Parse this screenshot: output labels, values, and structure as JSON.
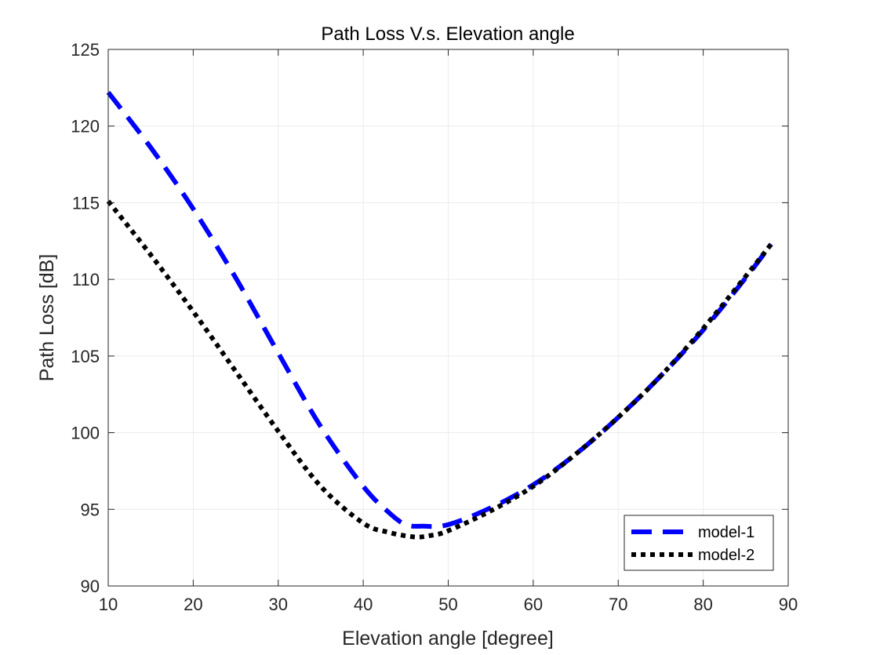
{
  "chart_data": {
    "type": "line",
    "title": "Path Loss V.s. Elevation angle",
    "xlabel": "Elevation angle [degree]",
    "ylabel": "Path Loss [dB]",
    "xlim": [
      10,
      90
    ],
    "ylim": [
      90,
      125
    ],
    "xticks": [
      10,
      20,
      30,
      40,
      50,
      60,
      70,
      80,
      90
    ],
    "yticks": [
      90,
      95,
      100,
      105,
      110,
      115,
      120,
      125
    ],
    "grid": true,
    "legend_position": "bottom-right",
    "series": [
      {
        "name": "model-1",
        "color": "#0000ff",
        "style": "dashed",
        "x": [
          10,
          15,
          20,
          25,
          30,
          35,
          40,
          43,
          45,
          47,
          50,
          55,
          60,
          65,
          70,
          75,
          80,
          85,
          88
        ],
        "y": [
          122.2,
          118.6,
          114.6,
          110.1,
          105.2,
          100.4,
          96.5,
          94.8,
          94.0,
          93.9,
          94.0,
          95.1,
          96.6,
          98.6,
          101.0,
          103.7,
          106.7,
          110.1,
          112.3
        ]
      },
      {
        "name": "model-2",
        "color": "#000000",
        "style": "dotted",
        "x": [
          10,
          15,
          20,
          25,
          30,
          35,
          40,
          43,
          46,
          48,
          50,
          55,
          60,
          65,
          70,
          75,
          80,
          85,
          88
        ],
        "y": [
          115.1,
          111.6,
          107.9,
          104.0,
          100.1,
          96.5,
          94.1,
          93.5,
          93.2,
          93.3,
          93.6,
          94.9,
          96.5,
          98.6,
          101.0,
          103.7,
          106.8,
          110.2,
          112.3
        ]
      }
    ]
  }
}
